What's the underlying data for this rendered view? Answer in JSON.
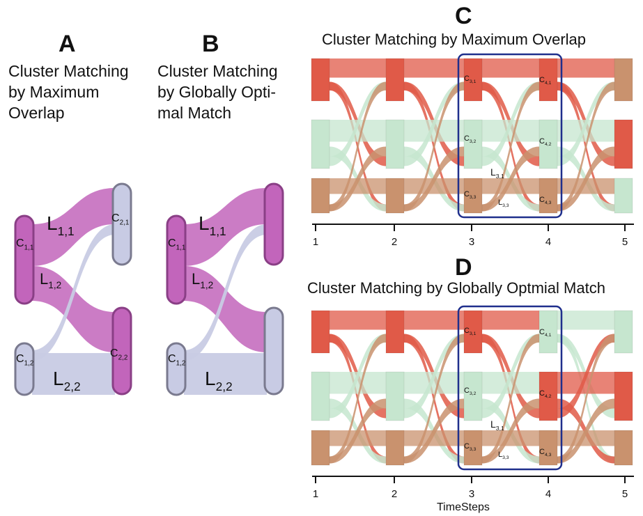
{
  "panels": {
    "A": {
      "letter": "A",
      "title": "Cluster Matching by Maximum Overlap"
    },
    "B": {
      "letter": "B",
      "title": "Cluster Matching by Globally Opti-mal Match"
    },
    "C": {
      "letter": "C",
      "title": "Cluster Matching by Maximum Overlap"
    },
    "D": {
      "letter": "D",
      "title": "Cluster Matching by Globally Optmial Match"
    }
  },
  "small_labels": {
    "c11": [
      "C",
      "1,1"
    ],
    "c12": [
      "C",
      "1,2"
    ],
    "c21": [
      "C",
      "2,1"
    ],
    "c22": [
      "C",
      "2,2"
    ],
    "l11": [
      "L",
      "1,1"
    ],
    "l12": [
      "L",
      "1,2"
    ],
    "l22": [
      "L",
      "2,2"
    ]
  },
  "flow_labels": {
    "c31": [
      "C",
      "3,1"
    ],
    "c32": [
      "C",
      "3,2"
    ],
    "c33": [
      "C",
      "3,3"
    ],
    "c41": [
      "C",
      "4,1"
    ],
    "c42": [
      "C",
      "4,2"
    ],
    "c43": [
      "C",
      "4,3"
    ],
    "l31": [
      "L",
      "3,1"
    ],
    "l33": [
      "L",
      "3,3"
    ]
  },
  "timesteps": [
    "1",
    "2",
    "3",
    "4",
    "5"
  ],
  "x_axis_label": "TimeSteps",
  "colors": {
    "red": "#e05a48",
    "tan": "#c9926e",
    "green": "#c6e6cf",
    "magenta": "#c265bb",
    "lavender": "#c8cbe4",
    "border": "#7a7a8f",
    "highlight": "#1f2f8c"
  },
  "states": {
    "C": [
      "red",
      "green",
      "tan",
      "red",
      "green",
      "tan",
      "red",
      "green",
      "tan",
      "red",
      "green",
      "tan",
      "tan",
      "red",
      "green"
    ],
    "D": [
      "red",
      "green",
      "tan",
      "red",
      "green",
      "tan",
      "red",
      "green",
      "tan",
      "green",
      "red",
      "tan",
      "green",
      "red",
      "tan"
    ]
  }
}
